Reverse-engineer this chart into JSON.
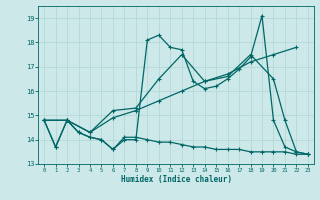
{
  "xlabel": "Humidex (Indice chaleur)",
  "bg_color": "#cce8e8",
  "line_color": "#006666",
  "grid_color": "#b0d4d4",
  "xlim": [
    -0.5,
    23.5
  ],
  "ylim": [
    13,
    19.5
  ],
  "xticks": [
    0,
    1,
    2,
    3,
    4,
    5,
    6,
    7,
    8,
    9,
    10,
    11,
    12,
    13,
    14,
    15,
    16,
    17,
    18,
    19,
    20,
    21,
    22,
    23
  ],
  "yticks": [
    13,
    14,
    15,
    16,
    17,
    18,
    19
  ],
  "line1_x": [
    0,
    1,
    2,
    3,
    4,
    5,
    6,
    7,
    8,
    9,
    10,
    11,
    12,
    13,
    14,
    15,
    16,
    17,
    18,
    19,
    20,
    21,
    22,
    23
  ],
  "line1_y": [
    14.8,
    13.7,
    14.8,
    14.3,
    14.1,
    14.0,
    13.6,
    14.0,
    14.0,
    18.1,
    18.3,
    17.8,
    17.7,
    16.4,
    16.1,
    16.2,
    16.5,
    16.9,
    17.4,
    19.1,
    14.8,
    13.7,
    13.5,
    13.4
  ],
  "line2_x": [
    0,
    2,
    4,
    6,
    8,
    10,
    12,
    14,
    16,
    18,
    20,
    22
  ],
  "line2_y": [
    14.8,
    14.8,
    14.3,
    14.9,
    15.2,
    15.6,
    16.0,
    16.4,
    16.7,
    17.2,
    17.5,
    17.8
  ],
  "line3_x": [
    0,
    2,
    4,
    6,
    8,
    10,
    12,
    14,
    16,
    18,
    20,
    21,
    22,
    23
  ],
  "line3_y": [
    14.8,
    14.8,
    14.3,
    15.2,
    15.3,
    16.5,
    17.5,
    16.4,
    16.6,
    17.5,
    16.5,
    14.8,
    13.5,
    13.4
  ],
  "line4_x": [
    0,
    1,
    2,
    3,
    4,
    5,
    6,
    7,
    8,
    9,
    10,
    11,
    12,
    13,
    14,
    15,
    16,
    17,
    18,
    19,
    20,
    21,
    22,
    23
  ],
  "line4_y": [
    14.8,
    13.7,
    14.8,
    14.3,
    14.1,
    14.0,
    13.6,
    14.1,
    14.1,
    14.0,
    13.9,
    13.9,
    13.8,
    13.7,
    13.7,
    13.6,
    13.6,
    13.6,
    13.5,
    13.5,
    13.5,
    13.5,
    13.4,
    13.4
  ]
}
